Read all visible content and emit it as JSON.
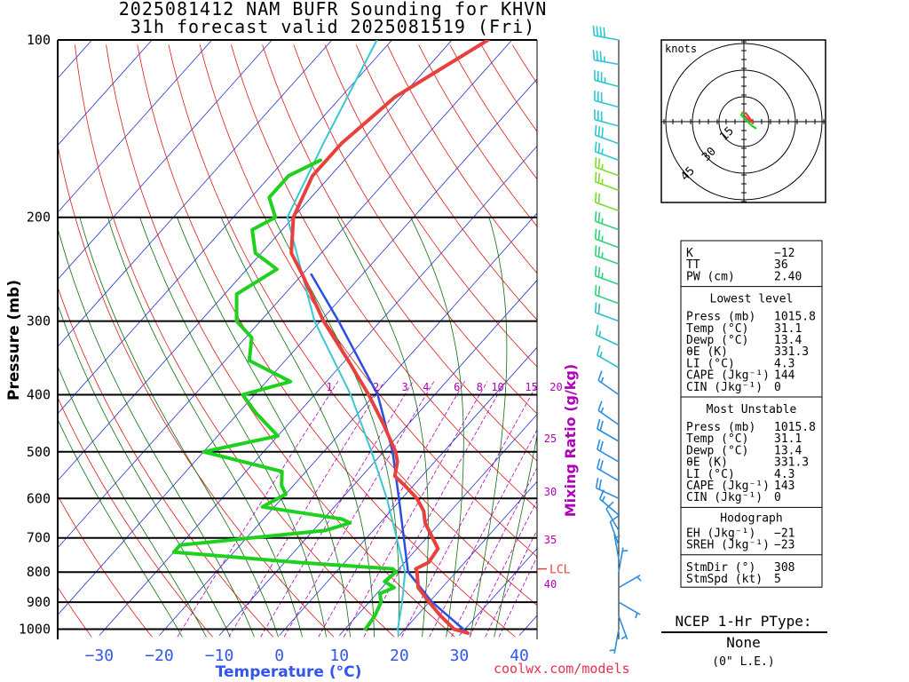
{
  "title": {
    "line1": "2025081412 NAM BUFR Sounding for KHVN",
    "line2": "31h forecast valid 2025081519 (Fri)"
  },
  "credit": "coolwx.com/models",
  "colors": {
    "temperature": "#e8403d",
    "dewpoint": "#1fd11f",
    "parcel": "#2a4fe0",
    "wetbulb": "#38c8d4",
    "isotherm": "#2233cc",
    "dry_adiabat": "#e01818",
    "moist_adiabat": "#0b6e0b",
    "mixing_ratio": "#b000b8",
    "axis_label_temp": "#3355ee",
    "axis_label_mixing": "#b000b8"
  },
  "chart_data": {
    "type": "skew-t",
    "xlabel": "Temperature (°C)",
    "ylabel": "Pressure (mb)",
    "mixing_label": "Mixing Ratio (g/kg)",
    "x_ticks": [
      -30,
      -20,
      -10,
      0,
      10,
      20,
      30,
      40
    ],
    "x_tick_labels": [
      "−30",
      "−20",
      "−10",
      "0",
      "10",
      "20",
      "30",
      "40"
    ],
    "xlim": [
      -40,
      42
    ],
    "ylim": [
      1025,
      100
    ],
    "y_ticks": [
      100,
      200,
      300,
      400,
      500,
      600,
      700,
      800,
      900,
      1000
    ],
    "y_tick_labels": [
      "100",
      "200",
      "300",
      "400",
      "500",
      "600",
      "700",
      "800",
      "900",
      "1000"
    ],
    "mixing_ratio_values": [
      1,
      2,
      3,
      4,
      6,
      8,
      10,
      15,
      20,
      25,
      30,
      35,
      40
    ],
    "mixing_ratio_labels": [
      "1",
      "2",
      "3",
      "4",
      "6",
      "8",
      "10",
      "15",
      "20",
      "25",
      "30",
      "35",
      "40"
    ],
    "lcl_label": "LCL",
    "lcl_pressure": 790,
    "temperature": [
      {
        "p": 1015.8,
        "t": 31.1
      },
      {
        "p": 1000,
        "t": 28.2
      },
      {
        "p": 950,
        "t": 24.0
      },
      {
        "p": 900,
        "t": 20.0
      },
      {
        "p": 850,
        "t": 16.0
      },
      {
        "p": 800,
        "t": 13.5
      },
      {
        "p": 790,
        "t": 12.8
      },
      {
        "p": 770,
        "t": 14.0
      },
      {
        "p": 730,
        "t": 13.5
      },
      {
        "p": 700,
        "t": 11.0
      },
      {
        "p": 660,
        "t": 7.5
      },
      {
        "p": 630,
        "t": 5.5
      },
      {
        "p": 600,
        "t": 2.5
      },
      {
        "p": 570,
        "t": -1.5
      },
      {
        "p": 550,
        "t": -4.5
      },
      {
        "p": 520,
        "t": -6.2
      },
      {
        "p": 500,
        "t": -8.0
      },
      {
        "p": 450,
        "t": -14.0
      },
      {
        "p": 400,
        "t": -21.0
      },
      {
        "p": 350,
        "t": -29.5
      },
      {
        "p": 300,
        "t": -39.5
      },
      {
        "p": 250,
        "t": -50.0
      },
      {
        "p": 230,
        "t": -55.0
      },
      {
        "p": 200,
        "t": -60.0
      },
      {
        "p": 170,
        "t": -63.0
      },
      {
        "p": 150,
        "t": -63.0
      },
      {
        "p": 125,
        "t": -61.0
      },
      {
        "p": 110,
        "t": -57.0
      },
      {
        "p": 100,
        "t": -54.0
      }
    ],
    "dewpoint": [
      {
        "p": 1000,
        "t": 13.4
      },
      {
        "p": 950,
        "t": 13.0
      },
      {
        "p": 900,
        "t": 12.0
      },
      {
        "p": 870,
        "t": 10.5
      },
      {
        "p": 850,
        "t": 12.0
      },
      {
        "p": 830,
        "t": 9.5
      },
      {
        "p": 800,
        "t": 10.0
      },
      {
        "p": 790,
        "t": 9.0
      },
      {
        "p": 770,
        "t": -8.0
      },
      {
        "p": 740,
        "t": -30.0
      },
      {
        "p": 720,
        "t": -30.0
      },
      {
        "p": 680,
        "t": -8.0
      },
      {
        "p": 660,
        "t": -5.0
      },
      {
        "p": 650,
        "t": -7.0
      },
      {
        "p": 620,
        "t": -22.0
      },
      {
        "p": 590,
        "t": -20.0
      },
      {
        "p": 570,
        "t": -22.0
      },
      {
        "p": 540,
        "t": -24.0
      },
      {
        "p": 500,
        "t": -40.0
      },
      {
        "p": 470,
        "t": -30.0
      },
      {
        "p": 430,
        "t": -37.0
      },
      {
        "p": 400,
        "t": -42.0
      },
      {
        "p": 380,
        "t": -36.0
      },
      {
        "p": 350,
        "t": -46.0
      },
      {
        "p": 320,
        "t": -49.0
      },
      {
        "p": 300,
        "t": -54.0
      },
      {
        "p": 270,
        "t": -58.0
      },
      {
        "p": 245,
        "t": -55.0
      },
      {
        "p": 230,
        "t": -61.0
      },
      {
        "p": 210,
        "t": -65.0
      },
      {
        "p": 200,
        "t": -63.0
      },
      {
        "p": 185,
        "t": -67.0
      },
      {
        "p": 170,
        "t": -67.0
      },
      {
        "p": 160,
        "t": -64.0
      }
    ],
    "parcel": [
      {
        "p": 1015.8,
        "t": 31.1
      },
      {
        "p": 900,
        "t": 20.5
      },
      {
        "p": 800,
        "t": 12.0
      },
      {
        "p": 700,
        "t": 6.2
      },
      {
        "p": 600,
        "t": -0.5
      },
      {
        "p": 500,
        "t": -8.5
      },
      {
        "p": 400,
        "t": -19.5
      },
      {
        "p": 300,
        "t": -37.0
      },
      {
        "p": 250,
        "t": -48.5
      }
    ],
    "wetbulb": [
      {
        "p": 1015.8,
        "t": 19.5
      },
      {
        "p": 1000,
        "t": 18.8
      },
      {
        "p": 900,
        "t": 15.5
      },
      {
        "p": 800,
        "t": 11.5
      },
      {
        "p": 700,
        "t": 5.0
      },
      {
        "p": 600,
        "t": -2.5
      },
      {
        "p": 500,
        "t": -12.0
      },
      {
        "p": 400,
        "t": -24.0
      },
      {
        "p": 300,
        "t": -41.0
      },
      {
        "p": 200,
        "t": -61.0
      },
      {
        "p": 150,
        "t": -66.0
      },
      {
        "p": 110,
        "t": -71.0
      },
      {
        "p": 100,
        "t": -72.5
      }
    ],
    "winds": [
      {
        "p": 100,
        "dir": 280,
        "spd": 40
      },
      {
        "p": 110,
        "dir": 280,
        "spd": 35
      },
      {
        "p": 120,
        "dir": 285,
        "spd": 35
      },
      {
        "p": 130,
        "dir": 285,
        "spd": 30
      },
      {
        "p": 140,
        "dir": 285,
        "spd": 30
      },
      {
        "p": 150,
        "dir": 290,
        "spd": 30
      },
      {
        "p": 160,
        "dir": 290,
        "spd": 25
      },
      {
        "p": 170,
        "dir": 290,
        "spd": 25
      },
      {
        "p": 180,
        "dir": 290,
        "spd": 25
      },
      {
        "p": 195,
        "dir": 290,
        "spd": 20
      },
      {
        "p": 210,
        "dir": 290,
        "spd": 25
      },
      {
        "p": 225,
        "dir": 290,
        "spd": 25
      },
      {
        "p": 240,
        "dir": 290,
        "spd": 25
      },
      {
        "p": 260,
        "dir": 290,
        "spd": 25
      },
      {
        "p": 280,
        "dir": 290,
        "spd": 20
      },
      {
        "p": 300,
        "dir": 290,
        "spd": 20
      },
      {
        "p": 330,
        "dir": 295,
        "spd": 15
      },
      {
        "p": 360,
        "dir": 300,
        "spd": 15
      },
      {
        "p": 400,
        "dir": 305,
        "spd": 15
      },
      {
        "p": 450,
        "dir": 305,
        "spd": 15
      },
      {
        "p": 480,
        "dir": 300,
        "spd": 20
      },
      {
        "p": 520,
        "dir": 300,
        "spd": 20
      },
      {
        "p": 560,
        "dir": 300,
        "spd": 20
      },
      {
        "p": 600,
        "dir": 295,
        "spd": 20
      },
      {
        "p": 640,
        "dir": 310,
        "spd": 15
      },
      {
        "p": 680,
        "dir": 330,
        "spd": 10
      },
      {
        "p": 720,
        "dir": 340,
        "spd": 10
      },
      {
        "p": 760,
        "dir": 350,
        "spd": 5
      },
      {
        "p": 800,
        "dir": 10,
        "spd": 5
      },
      {
        "p": 850,
        "dir": 60,
        "spd": 5
      },
      {
        "p": 900,
        "dir": 120,
        "spd": 5
      },
      {
        "p": 950,
        "dir": 160,
        "spd": 5
      },
      {
        "p": 1000,
        "dir": 190,
        "spd": 5
      }
    ],
    "hodograph": {
      "units_label": "knots",
      "ring_labels": [
        "15",
        "30",
        "45"
      ],
      "points": [
        {
          "u": 0.5,
          "v": 2.0
        },
        {
          "u": 2.0,
          "v": 0.5
        },
        {
          "u": 3.5,
          "v": -0.5
        },
        {
          "u": 2.5,
          "v": 1.0
        },
        {
          "u": 1.0,
          "v": 3.0
        },
        {
          "u": -0.5,
          "v": 3.5
        },
        {
          "u": -1.0,
          "v": 2.5
        },
        {
          "u": 1.5,
          "v": 0.0
        },
        {
          "u": 3.0,
          "v": -1.5
        },
        {
          "u": 4.5,
          "v": -2.5
        }
      ]
    }
  },
  "indices": {
    "group1": [
      {
        "label": "K",
        "value": "−12"
      },
      {
        "label": "TT",
        "value": "36"
      },
      {
        "label": "PW (cm)",
        "value": "2.40"
      }
    ],
    "lowest_title": "Lowest level",
    "lowest": [
      {
        "label": "Press (mb)",
        "value": "1015.8"
      },
      {
        "label": "Temp (°C)",
        "value": "31.1"
      },
      {
        "label": "Dewp (°C)",
        "value": "13.4"
      },
      {
        "label": "θE (K)",
        "value": "331.3"
      },
      {
        "label": "LI (°C)",
        "value": "4.3"
      },
      {
        "label": "CAPE (Jkg⁻¹)",
        "value": "144"
      },
      {
        "label": "CIN (Jkg⁻¹)",
        "value": "0"
      }
    ],
    "unstable_title": "Most Unstable",
    "unstable": [
      {
        "label": "Press (mb)",
        "value": "1015.8"
      },
      {
        "label": "Temp (°C)",
        "value": "31.1"
      },
      {
        "label": "Dewp (°C)",
        "value": "13.4"
      },
      {
        "label": "θE (K)",
        "value": "331.3"
      },
      {
        "label": "LI (°C)",
        "value": "4.3"
      },
      {
        "label": "CAPE (Jkg⁻¹)",
        "value": "143"
      },
      {
        "label": "CIN (Jkg⁻¹)",
        "value": "0"
      }
    ],
    "hodo_title": "Hodograph",
    "hodo": [
      {
        "label": "EH (Jkg⁻¹)",
        "value": "−21"
      },
      {
        "label": "SREH (Jkg⁻¹)",
        "value": "−23"
      },
      {
        "label": "StmDir (°)",
        "value": "308"
      },
      {
        "label": "StmSpd (kt)",
        "value": "5"
      }
    ]
  },
  "ptype": {
    "heading": "NCEP 1-Hr PType:",
    "value": "None",
    "amount": "(0\" L.E.)"
  }
}
